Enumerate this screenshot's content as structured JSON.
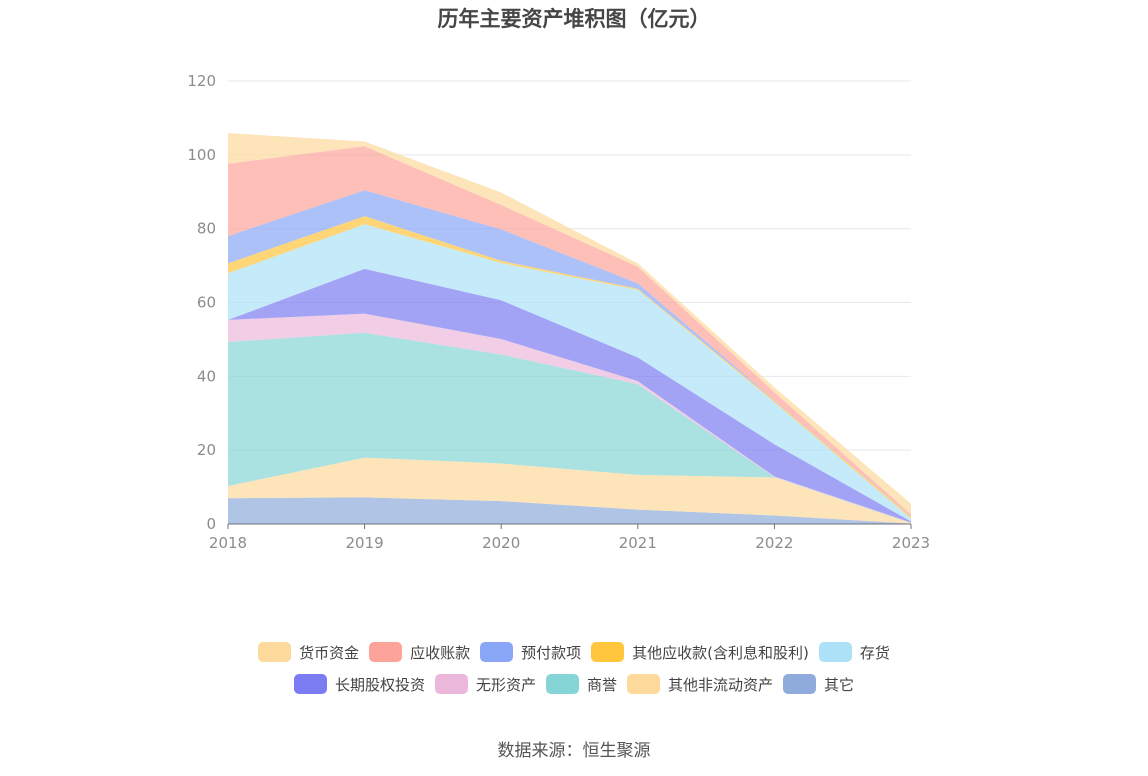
{
  "title": "历年主要资产堆积图（亿元）",
  "source": "数据来源：恒生聚源",
  "chart_data": {
    "type": "area",
    "stacked": true,
    "title": "历年主要资产堆积图（亿元）",
    "x": [
      "2018",
      "2019",
      "2020",
      "2021",
      "2022",
      "2023"
    ],
    "ylim": [
      0,
      120
    ],
    "yticks": [
      0,
      20,
      40,
      60,
      80,
      100,
      120
    ],
    "grid": true,
    "legend_position": "bottom",
    "series": [
      {
        "name": "其它",
        "color": "#8eabdc",
        "values": [
          7,
          7.2,
          6.2,
          3.9,
          2.3,
          0.1
        ]
      },
      {
        "name": "其他非流动资产",
        "color": "#fdd99b",
        "values": [
          3.3,
          10.8,
          10.2,
          9.4,
          10.3,
          0.1
        ]
      },
      {
        "name": "商誉",
        "color": "#86d5d6",
        "values": [
          39,
          33.8,
          29.5,
          24.6,
          0.1,
          0.1
        ]
      },
      {
        "name": "无形资产",
        "color": "#ebb8dc",
        "values": [
          6,
          5.2,
          4.2,
          0.8,
          0.2,
          0.1
        ]
      },
      {
        "name": "长期股权投资",
        "color": "#7c7cf2",
        "values": [
          0,
          12.1,
          10.5,
          6.4,
          8.7,
          0.3
        ]
      },
      {
        "name": "存货",
        "color": "#ace1f8",
        "values": [
          12.6,
          12.1,
          10.1,
          18.3,
          11.4,
          0.8
        ]
      },
      {
        "name": "其他应收款(含利息和股利)",
        "color": "#ffc53d",
        "values": [
          2.7,
          2.2,
          0.6,
          0.3,
          0.4,
          0.5
        ]
      },
      {
        "name": "预付款项",
        "color": "#8aa7f7",
        "values": [
          7.4,
          7,
          8.5,
          1.5,
          0.1,
          0.1
        ]
      },
      {
        "name": "应收账款",
        "color": "#fca49a",
        "values": [
          19.6,
          11.9,
          6.6,
          4.5,
          2.2,
          0.5
        ]
      },
      {
        "name": "货币资金",
        "color": "#fdd99b",
        "values": [
          8.3,
          1.3,
          3.4,
          0.9,
          1.3,
          2.9
        ]
      }
    ]
  },
  "legend": {
    "row1": [
      "货币资金",
      "应收账款",
      "预付款项",
      "其他应收款(含利息和股利)",
      "存货"
    ],
    "row2": [
      "长期股权投资",
      "无形资产",
      "商誉",
      "其他非流动资产",
      "其它"
    ]
  },
  "legend_colors": {
    "货币资金": "#fdd99b",
    "应收账款": "#fca49a",
    "预付款项": "#8aa7f7",
    "其他应收款(含利息和股利)": "#ffc53d",
    "存货": "#ace1f8",
    "长期股权投资": "#7c7cf2",
    "无形资产": "#ebb8dc",
    "商誉": "#86d5d6",
    "其他非流动资产": "#fdd99b",
    "其它": "#8eabdc"
  }
}
